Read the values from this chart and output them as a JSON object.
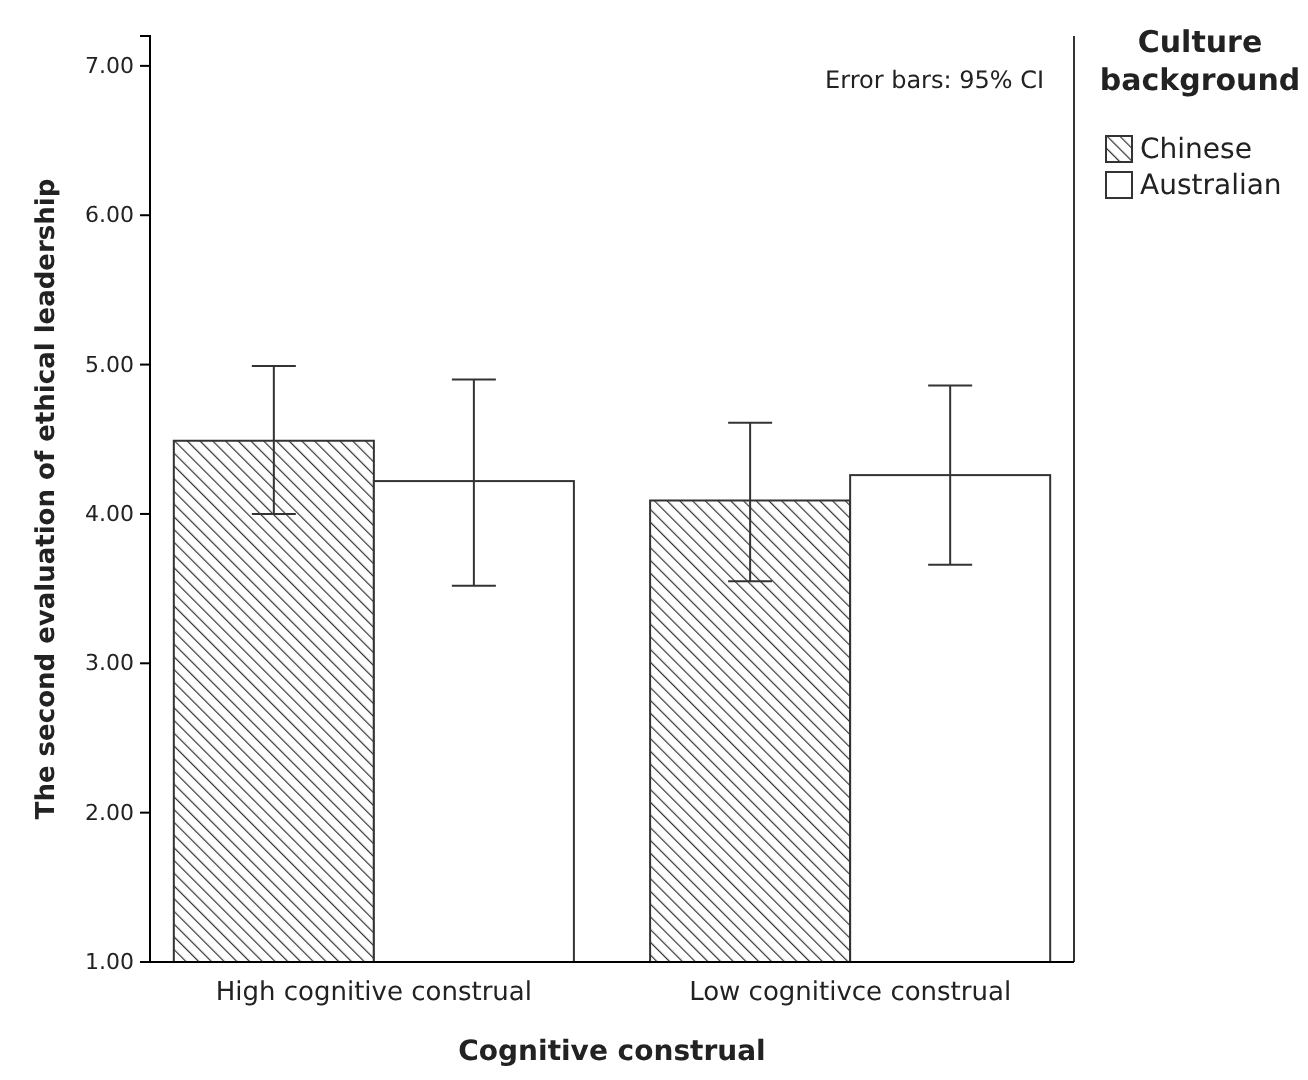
{
  "chart_data": {
    "type": "bar",
    "xlabel": "Cognitive construal",
    "ylabel": "The second evaluation of ethical leadership",
    "legend_title": "Culture background",
    "categories": [
      "High cognitive construal",
      "Low cognitivce construal"
    ],
    "series": [
      {
        "name": "Chinese",
        "color": "#333333",
        "values": [
          4.49,
          4.09
        ],
        "errors": [
          [
            4.0,
            4.99
          ],
          [
            3.55,
            4.61
          ]
        ]
      },
      {
        "name": "Australian",
        "color": "#ffffff",
        "values": [
          4.22,
          4.26
        ],
        "errors": [
          [
            3.52,
            4.9
          ],
          [
            3.66,
            4.86
          ]
        ]
      }
    ],
    "ylim": [
      1,
      7.2
    ],
    "yticks": [
      {
        "value": 1,
        "label": "1.00"
      },
      {
        "value": 2,
        "label": "2.00"
      },
      {
        "value": 3,
        "label": "3.00"
      },
      {
        "value": 4,
        "label": "4.00"
      },
      {
        "value": 5,
        "label": "5.00"
      },
      {
        "value": 6,
        "label": "6.00"
      },
      {
        "value": 7,
        "label": "7.00"
      }
    ],
    "annotations": [
      "Error bars: 95% CI"
    ],
    "legend": "top right",
    "grid": false
  }
}
